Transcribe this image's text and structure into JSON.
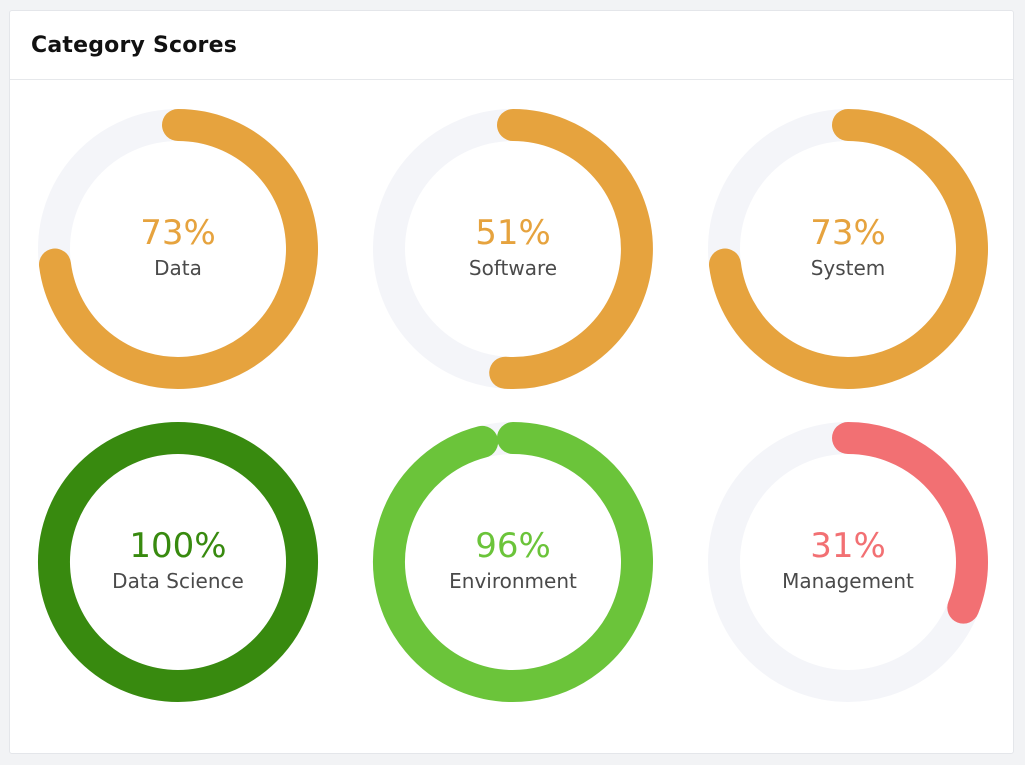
{
  "card": {
    "title": "Category Scores"
  },
  "colors": {
    "track": "#f4f5f9"
  },
  "chart_data": {
    "type": "radial-gauge",
    "items": [
      {
        "label": "Data",
        "value": 73,
        "display": "73%",
        "color": "#e6a33e"
      },
      {
        "label": "Software",
        "value": 51,
        "display": "51%",
        "color": "#e6a33e"
      },
      {
        "label": "System",
        "value": 73,
        "display": "73%",
        "color": "#e6a33e"
      },
      {
        "label": "Data Science",
        "value": 100,
        "display": "100%",
        "color": "#388a0f"
      },
      {
        "label": "Environment",
        "value": 96,
        "display": "96%",
        "color": "#6bc43a"
      },
      {
        "label": "Management",
        "value": 31,
        "display": "31%",
        "color": "#f27073"
      }
    ]
  }
}
